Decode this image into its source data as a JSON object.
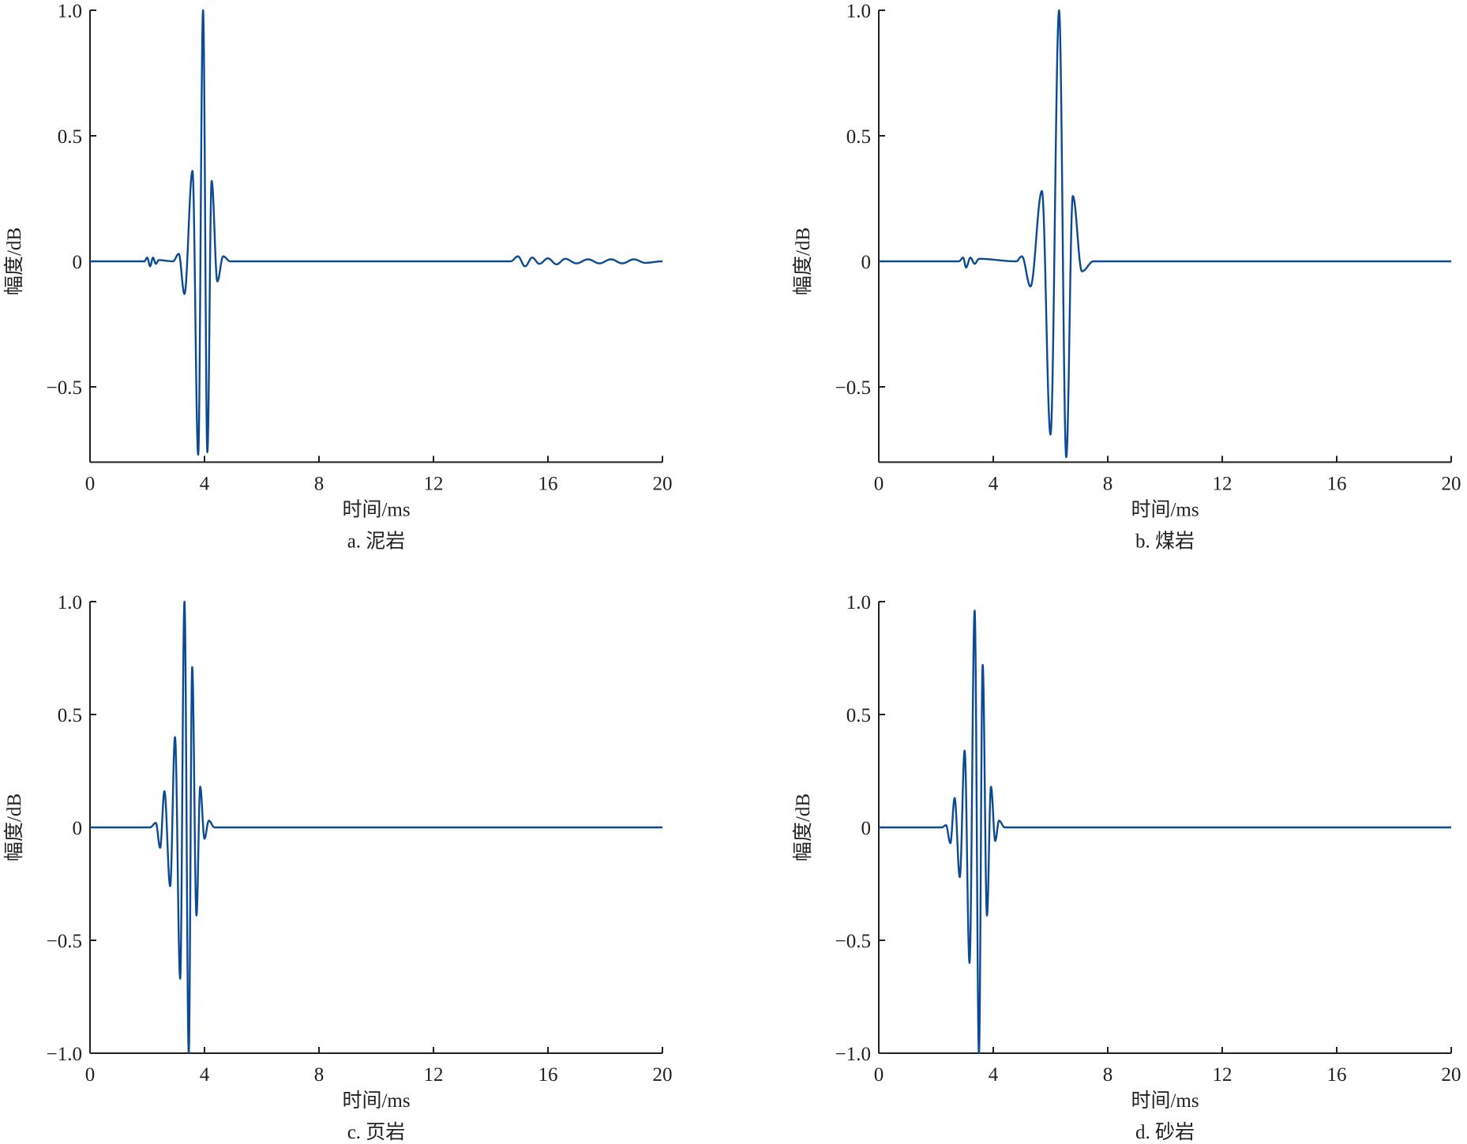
{
  "line_color": "#0d4a94",
  "chart_data": [
    {
      "type": "line",
      "caption": "a. 泥岩",
      "xlabel": "时间/ms",
      "ylabel": "幅度/dB",
      "xlim": [
        0,
        20
      ],
      "ylim": [
        -0.8,
        1.0
      ],
      "xticks": [
        "0",
        "4",
        "8",
        "12",
        "16",
        "20"
      ],
      "yticks": [
        {
          "v": 1.0,
          "label": "1.0"
        },
        {
          "v": 0.5,
          "label": "0.5"
        },
        {
          "v": 0,
          "label": "0"
        },
        {
          "v": -0.5,
          "label": "−0.5"
        }
      ],
      "extrema": [
        [
          0,
          0
        ],
        [
          1.9,
          0
        ],
        [
          2.0,
          0.015
        ],
        [
          2.1,
          -0.02
        ],
        [
          2.2,
          0.015
        ],
        [
          2.3,
          -0.01
        ],
        [
          2.4,
          0.005
        ],
        [
          2.9,
          0
        ],
        [
          3.1,
          0.03
        ],
        [
          3.3,
          -0.13
        ],
        [
          3.58,
          0.36
        ],
        [
          3.78,
          -0.77
        ],
        [
          3.95,
          1.0
        ],
        [
          4.1,
          -0.76
        ],
        [
          4.25,
          0.32
        ],
        [
          4.45,
          -0.08
        ],
        [
          4.65,
          0.02
        ],
        [
          4.9,
          0
        ],
        [
          14.7,
          0
        ],
        [
          14.95,
          0.02
        ],
        [
          15.2,
          -0.02
        ],
        [
          15.45,
          0.015
        ],
        [
          15.7,
          -0.01
        ],
        [
          16.0,
          0.012
        ],
        [
          16.3,
          -0.012
        ],
        [
          16.6,
          0.01
        ],
        [
          17.0,
          -0.008
        ],
        [
          17.4,
          0.008
        ],
        [
          17.8,
          -0.008
        ],
        [
          18.2,
          0.008
        ],
        [
          18.6,
          -0.008
        ],
        [
          19.0,
          0.008
        ],
        [
          19.4,
          -0.006
        ],
        [
          20,
          0
        ]
      ]
    },
    {
      "type": "line",
      "caption": "b. 煤岩",
      "xlabel": "时间/ms",
      "ylabel": "幅度/dB",
      "xlim": [
        0,
        20
      ],
      "ylim": [
        -0.8,
        1.0
      ],
      "xticks": [
        "0",
        "4",
        "8",
        "12",
        "16",
        "20"
      ],
      "yticks": [
        {
          "v": 1.0,
          "label": "1.0"
        },
        {
          "v": 0.5,
          "label": "0.5"
        },
        {
          "v": 0,
          "label": "0"
        },
        {
          "v": -0.5,
          "label": "−0.5"
        }
      ],
      "extrema": [
        [
          0,
          0
        ],
        [
          2.8,
          0
        ],
        [
          2.95,
          0.015
        ],
        [
          3.05,
          -0.025
        ],
        [
          3.2,
          0.015
        ],
        [
          3.35,
          -0.01
        ],
        [
          3.5,
          0.01
        ],
        [
          4.8,
          0
        ],
        [
          5.0,
          0.02
        ],
        [
          5.3,
          -0.1
        ],
        [
          5.7,
          0.28
        ],
        [
          6.0,
          -0.69
        ],
        [
          6.3,
          1.0
        ],
        [
          6.55,
          -0.78
        ],
        [
          6.78,
          0.26
        ],
        [
          7.1,
          -0.04
        ],
        [
          7.5,
          0
        ],
        [
          20,
          0
        ]
      ]
    },
    {
      "type": "line",
      "caption": "c. 页岩",
      "xlabel": "时间/ms",
      "ylabel": "幅度/dB",
      "xlim": [
        0,
        20
      ],
      "ylim": [
        -1.0,
        1.0
      ],
      "xticks": [
        "0",
        "4",
        "8",
        "12",
        "16",
        "20"
      ],
      "yticks": [
        {
          "v": 1.0,
          "label": "1.0"
        },
        {
          "v": 0.5,
          "label": "0.5"
        },
        {
          "v": 0,
          "label": "0"
        },
        {
          "v": -0.5,
          "label": "−0.5"
        },
        {
          "v": -1.0,
          "label": "−1.0"
        }
      ],
      "extrema": [
        [
          0,
          0
        ],
        [
          2.1,
          0
        ],
        [
          2.3,
          0.02
        ],
        [
          2.45,
          -0.09
        ],
        [
          2.6,
          0.16
        ],
        [
          2.8,
          -0.26
        ],
        [
          2.97,
          0.4
        ],
        [
          3.15,
          -0.67
        ],
        [
          3.3,
          1.0
        ],
        [
          3.45,
          -1.0
        ],
        [
          3.57,
          0.71
        ],
        [
          3.72,
          -0.39
        ],
        [
          3.85,
          0.18
        ],
        [
          4.0,
          -0.05
        ],
        [
          4.15,
          0.03
        ],
        [
          4.35,
          0
        ],
        [
          20,
          0
        ]
      ]
    },
    {
      "type": "line",
      "caption": "d. 砂岩",
      "xlabel": "时间/ms",
      "ylabel": "幅度/dB",
      "xlim": [
        0,
        20
      ],
      "ylim": [
        -1.0,
        1.0
      ],
      "xticks": [
        "0",
        "4",
        "8",
        "12",
        "16",
        "20"
      ],
      "yticks": [
        {
          "v": 1.0,
          "label": "1.0"
        },
        {
          "v": 0.5,
          "label": "0.5"
        },
        {
          "v": 0,
          "label": "0"
        },
        {
          "v": -0.5,
          "label": "−0.5"
        },
        {
          "v": -1.0,
          "label": "−1.0"
        }
      ],
      "extrema": [
        [
          0,
          0
        ],
        [
          2.2,
          0
        ],
        [
          2.35,
          0.01
        ],
        [
          2.5,
          -0.07
        ],
        [
          2.65,
          0.13
        ],
        [
          2.83,
          -0.22
        ],
        [
          3.0,
          0.34
        ],
        [
          3.17,
          -0.6
        ],
        [
          3.35,
          0.96
        ],
        [
          3.5,
          -1.0
        ],
        [
          3.63,
          0.72
        ],
        [
          3.78,
          -0.39
        ],
        [
          3.92,
          0.18
        ],
        [
          4.07,
          -0.06
        ],
        [
          4.2,
          0.03
        ],
        [
          4.4,
          0
        ],
        [
          20,
          0
        ]
      ]
    }
  ]
}
